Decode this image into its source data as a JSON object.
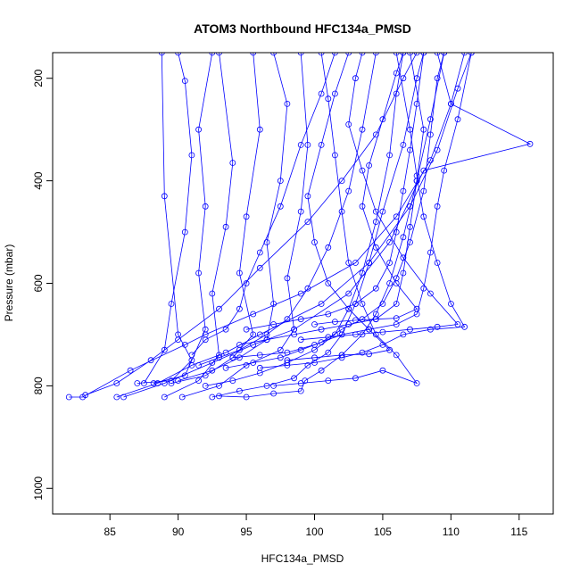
{
  "chart_data": {
    "type": "scatter",
    "title": "ATOM3 Northbound HFC134a_PMSD",
    "xlabel": "HFC134a_PMSD",
    "ylabel": "Pressure (mbar)",
    "xlim": [
      80.8,
      117.5
    ],
    "ylim": [
      1050,
      150
    ],
    "y_reversed": true,
    "grid": false,
    "legend": "none",
    "x_ticks": [
      85,
      90,
      95,
      100,
      105,
      110,
      115
    ],
    "y_ticks": [
      200,
      400,
      600,
      800,
      1000
    ],
    "series_color": "#0000ff",
    "marker": "open-circle",
    "connected": true,
    "profiles": [
      [
        [
          82.0,
          822
        ],
        [
          83.0,
          822
        ],
        [
          86.5,
          770
        ],
        [
          90.5,
          720
        ],
        [
          92.0,
          700
        ],
        [
          95.5,
          660
        ],
        [
          99.0,
          620
        ],
        [
          103.0,
          560
        ],
        [
          106.0,
          470
        ],
        [
          108.5,
          360
        ],
        [
          110.0,
          250
        ],
        [
          111.0,
          150
        ]
      ],
      [
        [
          83.2,
          818
        ],
        [
          85.5,
          795
        ],
        [
          88.0,
          750
        ],
        [
          90.0,
          710
        ],
        [
          93.0,
          650
        ],
        [
          96.0,
          570
        ],
        [
          99.5,
          480
        ],
        [
          102.0,
          400
        ],
        [
          104.5,
          310
        ],
        [
          106.5,
          200
        ],
        [
          107.5,
          150
        ]
      ],
      [
        [
          85.5,
          822
        ],
        [
          88.5,
          795
        ],
        [
          91.0,
          760
        ],
        [
          93.5,
          735
        ],
        [
          96.0,
          700
        ],
        [
          100.5,
          640
        ],
        [
          104.0,
          560
        ],
        [
          107.0,
          450
        ],
        [
          109.0,
          340
        ],
        [
          110.5,
          220
        ],
        [
          111.5,
          150
        ]
      ],
      [
        [
          86.0,
          822
        ],
        [
          89.0,
          795
        ],
        [
          92.5,
          755
        ],
        [
          95.5,
          720
        ],
        [
          98.5,
          690
        ],
        [
          102.5,
          620
        ],
        [
          105.5,
          520
        ],
        [
          108.0,
          380
        ],
        [
          115.8,
          328
        ],
        [
          110.0,
          250
        ],
        [
          109.0,
          150
        ]
      ],
      [
        [
          87.0,
          795
        ],
        [
          89.5,
          790
        ],
        [
          91.0,
          750
        ],
        [
          90.0,
          700
        ],
        [
          89.0,
          430
        ],
        [
          88.8,
          150
        ]
      ],
      [
        [
          87.5,
          795
        ],
        [
          89.0,
          730
        ],
        [
          89.5,
          640
        ],
        [
          90.5,
          500
        ],
        [
          91.0,
          350
        ],
        [
          90.5,
          205
        ],
        [
          90.0,
          150
        ]
      ],
      [
        [
          88.2,
          795
        ],
        [
          90.5,
          780
        ],
        [
          92.0,
          690
        ],
        [
          91.5,
          580
        ],
        [
          92.0,
          450
        ],
        [
          91.5,
          300
        ],
        [
          92.5,
          150
        ]
      ],
      [
        [
          89.0,
          822
        ],
        [
          91.5,
          790
        ],
        [
          93.0,
          740
        ],
        [
          92.5,
          620
        ],
        [
          93.5,
          490
        ],
        [
          94.0,
          365
        ],
        [
          93.0,
          150
        ]
      ],
      [
        [
          89.5,
          795
        ],
        [
          92.0,
          780
        ],
        [
          94.0,
          745
        ],
        [
          95.5,
          700
        ],
        [
          94.5,
          580
        ],
        [
          95.0,
          470
        ],
        [
          96.0,
          300
        ],
        [
          95.5,
          150
        ]
      ],
      [
        [
          90.0,
          790
        ],
        [
          92.5,
          770
        ],
        [
          94.5,
          745
        ],
        [
          96.5,
          710
        ],
        [
          97.0,
          640
        ],
        [
          96.5,
          520
        ],
        [
          97.5,
          400
        ],
        [
          98.0,
          250
        ],
        [
          97.0,
          150
        ]
      ],
      [
        [
          90.3,
          822
        ],
        [
          93.0,
          800
        ],
        [
          95.0,
          760
        ],
        [
          97.5,
          730
        ],
        [
          98.5,
          690
        ],
        [
          98.0,
          590
        ],
        [
          99.0,
          460
        ],
        [
          99.5,
          330
        ],
        [
          99.0,
          150
        ]
      ],
      [
        [
          91.0,
          740
        ],
        [
          92.0,
          710
        ],
        [
          93.5,
          690
        ],
        [
          94.5,
          650
        ],
        [
          95.0,
          600
        ],
        [
          96.0,
          540
        ],
        [
          97.5,
          450
        ],
        [
          99.0,
          330
        ],
        [
          100.5,
          230
        ],
        [
          101.5,
          150
        ]
      ],
      [
        [
          91.5,
          760
        ],
        [
          93.0,
          745
        ],
        [
          94.5,
          730
        ],
        [
          96.5,
          700
        ],
        [
          98.0,
          670
        ],
        [
          99.5,
          610
        ],
        [
          101.0,
          530
        ],
        [
          102.5,
          420
        ],
        [
          103.5,
          300
        ],
        [
          104.5,
          150
        ]
      ],
      [
        [
          92.0,
          800
        ],
        [
          94.0,
          790
        ],
        [
          96.0,
          775
        ],
        [
          98.0,
          755
        ],
        [
          100.0,
          730
        ],
        [
          101.5,
          700
        ],
        [
          102.5,
          650
        ],
        [
          103.5,
          580
        ],
        [
          104.5,
          480
        ],
        [
          105.5,
          350
        ],
        [
          106.0,
          230
        ],
        [
          106.5,
          150
        ]
      ],
      [
        [
          92.5,
          822
        ],
        [
          94.5,
          810
        ],
        [
          96.5,
          800
        ],
        [
          98.5,
          785
        ],
        [
          99.5,
          760
        ],
        [
          101.0,
          735
        ],
        [
          102.0,
          700
        ],
        [
          103.0,
          640
        ],
        [
          104.0,
          560
        ],
        [
          105.0,
          460
        ],
        [
          106.5,
          330
        ],
        [
          107.5,
          200
        ],
        [
          108.0,
          150
        ]
      ],
      [
        [
          93.0,
          820
        ],
        [
          95.0,
          822
        ],
        [
          97.0,
          815
        ],
        [
          99.0,
          810
        ],
        [
          99.3,
          790
        ],
        [
          100.5,
          770
        ],
        [
          102.0,
          740
        ],
        [
          103.5,
          700
        ],
        [
          104.5,
          660
        ],
        [
          105.5,
          600
        ],
        [
          106.5,
          510
        ],
        [
          107.5,
          400
        ],
        [
          108.5,
          280
        ],
        [
          109.5,
          150
        ]
      ],
      [
        [
          93.5,
          765
        ],
        [
          95.5,
          755
        ],
        [
          97.5,
          745
        ],
        [
          99.0,
          730
        ],
        [
          100.5,
          715
        ],
        [
          102.0,
          690
        ],
        [
          103.5,
          670
        ],
        [
          105.0,
          640
        ],
        [
          106.0,
          590
        ],
        [
          107.0,
          520
        ],
        [
          108.0,
          420
        ],
        [
          108.5,
          310
        ],
        [
          109.0,
          200
        ],
        [
          109.5,
          150
        ]
      ],
      [
        [
          94.0,
          745
        ],
        [
          96.0,
          740
        ],
        [
          98.0,
          735
        ],
        [
          100.0,
          720
        ],
        [
          102.0,
          700
        ],
        [
          104.0,
          690
        ],
        [
          106.0,
          680
        ],
        [
          107.5,
          660
        ],
        [
          108.0,
          610
        ],
        [
          108.5,
          540
        ],
        [
          109.0,
          450
        ],
        [
          109.5,
          380
        ],
        [
          110.5,
          280
        ],
        [
          111.5,
          150
        ]
      ],
      [
        [
          94.5,
          720
        ],
        [
          96.5,
          710
        ],
        [
          98.5,
          700
        ],
        [
          100.5,
          690
        ],
        [
          102.5,
          680
        ],
        [
          104.5,
          670
        ],
        [
          106.0,
          640
        ],
        [
          106.5,
          580
        ],
        [
          107.0,
          490
        ],
        [
          107.5,
          400
        ],
        [
          108.0,
          300
        ],
        [
          107.0,
          150
        ]
      ],
      [
        [
          95.0,
          690
        ],
        [
          97.0,
          680
        ],
        [
          99.0,
          670
        ],
        [
          101.0,
          660
        ],
        [
          103.0,
          640
        ],
        [
          104.5,
          610
        ],
        [
          105.5,
          560
        ],
        [
          106.0,
          500
        ],
        [
          106.5,
          420
        ],
        [
          107.0,
          340
        ],
        [
          107.5,
          250
        ],
        [
          108.0,
          150
        ]
      ],
      [
        [
          96.0,
          765
        ],
        [
          98.0,
          760
        ],
        [
          100.0,
          755
        ],
        [
          102.0,
          745
        ],
        [
          103.5,
          735
        ],
        [
          105.0,
          720
        ],
        [
          106.5,
          700
        ],
        [
          108.5,
          690
        ],
        [
          111.0,
          685
        ],
        [
          110.0,
          640
        ],
        [
          109.0,
          560
        ],
        [
          108.0,
          470
        ],
        [
          107.5,
          390
        ],
        [
          107.0,
          300
        ],
        [
          106.0,
          150
        ]
      ],
      [
        [
          97.0,
          800
        ],
        [
          99.0,
          795
        ],
        [
          101.0,
          790
        ],
        [
          103.0,
          785
        ],
        [
          105.0,
          770
        ],
        [
          107.5,
          795
        ],
        [
          106.0,
          740
        ],
        [
          104.5,
          700
        ],
        [
          103.5,
          640
        ],
        [
          102.5,
          560
        ],
        [
          102.0,
          460
        ],
        [
          101.5,
          350
        ],
        [
          101.0,
          240
        ],
        [
          100.5,
          150
        ]
      ],
      [
        [
          98.0,
          750
        ],
        [
          100.0,
          745
        ],
        [
          102.0,
          740
        ],
        [
          104.0,
          738
        ],
        [
          105.5,
          730
        ],
        [
          104.0,
          690
        ],
        [
          102.5,
          650
        ],
        [
          101.0,
          600
        ],
        [
          100.0,
          520
        ],
        [
          99.5,
          430
        ],
        [
          100.5,
          330
        ],
        [
          101.5,
          230
        ],
        [
          102.5,
          150
        ]
      ],
      [
        [
          99.0,
          710
        ],
        [
          101.0,
          705
        ],
        [
          103.0,
          700
        ],
        [
          105.0,
          695
        ],
        [
          107.0,
          690
        ],
        [
          109.0,
          685
        ],
        [
          110.5,
          680
        ],
        [
          108.5,
          620
        ],
        [
          106.5,
          550
        ],
        [
          104.5,
          460
        ],
        [
          103.5,
          380
        ],
        [
          102.5,
          290
        ],
        [
          103.0,
          200
        ],
        [
          103.5,
          150
        ]
      ],
      [
        [
          100.0,
          680
        ],
        [
          101.5,
          675
        ],
        [
          103.0,
          672
        ],
        [
          104.5,
          670
        ],
        [
          106.0,
          668
        ],
        [
          107.5,
          650
        ],
        [
          106.0,
          600
        ],
        [
          104.5,
          530
        ],
        [
          103.5,
          450
        ],
        [
          104.0,
          370
        ],
        [
          105.0,
          280
        ],
        [
          106.0,
          190
        ],
        [
          106.5,
          150
        ]
      ]
    ]
  }
}
